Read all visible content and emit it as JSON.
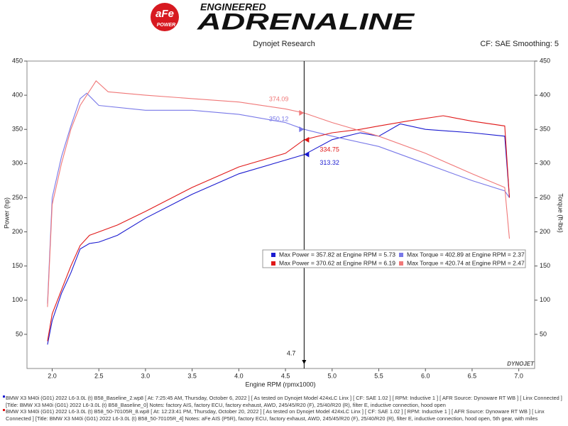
{
  "header": {
    "badge": "aFe",
    "badge_sub": "POWER",
    "tagline": "ENGINEERED",
    "brand": "ADRENALINE"
  },
  "chart_data": {
    "type": "line",
    "title": "Dynojet Research",
    "subtitle": "CF: SAE Smoothing: 5",
    "xlabel": "Engine RPM (rpmx1000)",
    "ylabel": "Power (hp)",
    "y2label": "Torque (ft-lbs)",
    "watermark": "DYNOJET",
    "xlim": [
      1.73,
      7.17
    ],
    "ylim": [
      0,
      450
    ],
    "y2lim": [
      0,
      450
    ],
    "xticks": [
      {
        "value": 2,
        "label": "2.0"
      },
      2.5,
      {
        "value": 3,
        "label": "3.0"
      },
      3.5,
      {
        "value": 4,
        "label": "4.0"
      },
      4.5,
      {
        "value": 5,
        "label": "5.0"
      },
      5.5,
      {
        "value": 6,
        "label": "6.0"
      },
      6.5,
      {
        "value": 7,
        "label": "7.0"
      }
    ],
    "yticks": [
      50,
      100,
      150,
      200,
      250,
      300,
      350,
      400,
      450
    ],
    "y2ticks": [
      50,
      100,
      150,
      200,
      250,
      300,
      350,
      400,
      450
    ],
    "series": [
      {
        "name": "Max Power = 357.82 at Engine RPM = 5.73",
        "color": "#1a1ad0",
        "x": [
          1.95,
          2.0,
          2.1,
          2.2,
          2.3,
          2.4,
          2.5,
          2.7,
          3.0,
          3.5,
          4.0,
          4.5,
          4.7,
          5.0,
          5.3,
          5.5,
          5.73,
          6.0,
          6.5,
          6.85,
          6.9
        ],
        "values": [
          35,
          70,
          110,
          140,
          175,
          183,
          185,
          195,
          220,
          255,
          285,
          305,
          313,
          335,
          345,
          340,
          358,
          350,
          345,
          340,
          250
        ]
      },
      {
        "name": "Max Torque = 402.89 at Engine RPM = 2.37",
        "color": "#7878e8",
        "axis": "y2",
        "x": [
          1.95,
          2.0,
          2.1,
          2.2,
          2.3,
          2.37,
          2.5,
          3.0,
          3.5,
          4.0,
          4.5,
          4.7,
          5.0,
          5.5,
          6.0,
          6.5,
          6.85,
          6.9
        ],
        "values": [
          95,
          250,
          310,
          355,
          395,
          403,
          385,
          378,
          378,
          372,
          360,
          350,
          340,
          325,
          300,
          275,
          260,
          250
        ]
      },
      {
        "name": "Max Power = 370.62 at Engine RPM = 6.19",
        "color": "#e01818",
        "x": [
          1.95,
          2.0,
          2.1,
          2.2,
          2.3,
          2.4,
          2.5,
          2.7,
          3.0,
          3.5,
          4.0,
          4.5,
          4.7,
          5.0,
          5.3,
          5.5,
          5.8,
          6.19,
          6.5,
          6.85,
          6.9
        ],
        "values": [
          40,
          80,
          115,
          150,
          180,
          195,
          200,
          210,
          230,
          265,
          295,
          315,
          335,
          345,
          350,
          355,
          362,
          370,
          362,
          355,
          250
        ]
      },
      {
        "name": "Max Torque = 420.74 at Engine RPM = 2.47",
        "color": "#f07878",
        "axis": "y2",
        "x": [
          1.95,
          2.0,
          2.1,
          2.2,
          2.3,
          2.47,
          2.6,
          3.0,
          3.5,
          4.0,
          4.5,
          4.7,
          5.0,
          5.5,
          6.0,
          6.5,
          6.85,
          6.9
        ],
        "values": [
          90,
          240,
          300,
          350,
          385,
          421,
          405,
          400,
          395,
          390,
          380,
          374,
          360,
          340,
          315,
          285,
          265,
          190
        ]
      }
    ],
    "cursor": 4.7,
    "annotations": [
      {
        "x": 4.7,
        "y": 374.09,
        "color": "#f07878"
      },
      {
        "x": 4.7,
        "y": 350.12,
        "color": "#7878e8"
      },
      {
        "x": 4.7,
        "y": 334.75,
        "color": "#e01818"
      },
      {
        "x": 4.7,
        "y": 313.32,
        "color": "#1a1ad0"
      }
    ]
  },
  "notes": [
    {
      "color": "#1a1ad0",
      "text": "BMW X3 M40i (G01) 2022 L6-3.0L (t) B58_Baseline_2.wp8 [ At: 7:25:45 AM, Thursday, October 6, 2022 ] [ As tested on Dynojet Model 424xLC Linx ] [ CF: SAE 1.02 ] [ RPM: Inductive 1 ] [ AFR Source: Dynoware RT WB ] [ Linx Connected ] [Title: BMW X3 M40i (G01) 2022 L6-3.0L (t) B58_Baseline_0]  Notes: factory AIS, factory ECU, factory exhaust, AWD, 245/45/R20 (F), 25/40/R20 (R), filter E, inductive connection, hood open"
    },
    {
      "color": "#e01818",
      "text": "BMW X3 M40i (G01) 2022 L6-3.0L (t) B58_50-70105R_8.wp8 [ At: 12:23:41 PM, Thursday, October 20, 2022 ] [ As tested on Dynojet Model 424xLC Linx ] [ CF: SAE 1.02 ] [ RPM: Inductive 1 ] [ AFR Source: Dynoware RT WB ] [ Linx Connected ] [Title: BMW X3 M40i (G01) 2022 L6-3.0L (t) B58_50-70105R_4]  Notes: aFe AIS (P5R), factory ECU, factory exhaust, AWD, 245/45/R20 (F), 25/40/R20 (R), filter E, inductive connection, hood open, 5th gear, with miles"
    }
  ]
}
